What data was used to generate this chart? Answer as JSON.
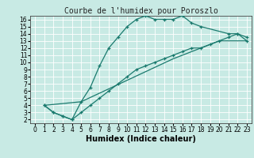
{
  "title": "Courbe de l'humidex pour Poroszlo",
  "xlabel": "Humidex (Indice chaleur)",
  "bg_color": "#c8eae4",
  "grid_color": "#ffffff",
  "line_color": "#1a7a6e",
  "xlim": [
    -0.5,
    23.5
  ],
  "ylim": [
    1.5,
    16.5
  ],
  "xticks": [
    0,
    1,
    2,
    3,
    4,
    5,
    6,
    7,
    8,
    9,
    10,
    11,
    12,
    13,
    14,
    15,
    16,
    17,
    18,
    19,
    20,
    21,
    22,
    23
  ],
  "yticks": [
    2,
    3,
    4,
    5,
    6,
    7,
    8,
    9,
    10,
    11,
    12,
    13,
    14,
    15,
    16
  ],
  "line1_x": [
    1,
    2,
    3,
    4,
    5,
    6,
    7,
    8,
    9,
    10,
    11,
    12,
    13,
    14,
    15,
    16,
    17,
    18,
    21,
    22,
    23
  ],
  "line1_y": [
    4,
    3,
    2.5,
    2,
    4.5,
    6.5,
    9.5,
    12,
    13.5,
    15,
    16,
    16.5,
    16,
    16,
    16,
    16.5,
    15.5,
    15,
    14,
    14,
    13.5
  ],
  "line2_x": [
    1,
    2,
    3,
    4,
    5,
    6,
    7,
    8,
    9,
    10,
    11,
    12,
    13,
    14,
    15,
    16,
    17,
    18,
    19,
    20,
    21,
    22,
    23
  ],
  "line2_y": [
    4,
    3,
    2.5,
    2,
    3,
    4,
    5,
    6,
    7,
    8,
    9,
    9.5,
    10,
    10.5,
    11,
    11.5,
    12,
    12,
    12.5,
    13,
    13.5,
    14,
    13
  ],
  "line3_x": [
    1,
    5,
    10,
    15,
    20,
    23
  ],
  "line3_y": [
    4,
    4.5,
    7.5,
    10.5,
    13,
    13
  ],
  "markersize": 3.5,
  "linewidth": 0.9,
  "title_fontsize": 7,
  "xlabel_fontsize": 7,
  "tick_labelsize": 5.5
}
